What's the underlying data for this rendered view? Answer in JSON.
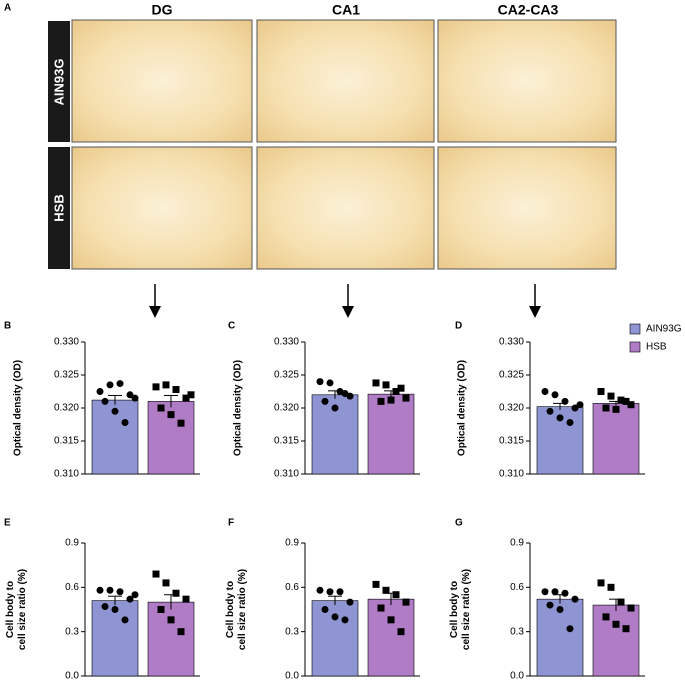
{
  "panel_a": {
    "label": "A",
    "columns": [
      "DG",
      "CA1",
      "CA2-CA3"
    ],
    "rows": [
      "AIN93G",
      "HSB"
    ]
  },
  "chart_data": [
    {
      "type": "bar",
      "label": "B",
      "ylabel": "Optical density (OD)",
      "ylim": [
        0.31,
        0.33
      ],
      "yticks": [
        {
          "value": 0.31,
          "label": "0.310"
        },
        {
          "value": 0.315,
          "label": "0.315"
        },
        {
          "value": 0.32,
          "label": "0.320"
        },
        {
          "value": 0.325,
          "label": "0.325"
        },
        {
          "value": 0.33,
          "label": "0.330"
        }
      ],
      "series": [
        {
          "name": "AIN93G",
          "color": "#8f95d3",
          "marker": "circle",
          "values": [
            0.3212
          ],
          "errors": [
            0.0007
          ],
          "points": [
            0.3225,
            0.3235,
            0.3237,
            0.322,
            0.321,
            0.3195,
            0.3178,
            0.3215
          ]
        },
        {
          "name": "HSB",
          "color": "#b07cc6",
          "marker": "square",
          "values": [
            0.321
          ],
          "errors": [
            0.0009
          ],
          "points": [
            0.3232,
            0.3235,
            0.3228,
            0.3215,
            0.32,
            0.319,
            0.3177,
            0.322
          ]
        }
      ]
    },
    {
      "type": "bar",
      "label": "C",
      "ylabel": "Optical density (OD)",
      "ylim": [
        0.31,
        0.33
      ],
      "yticks": [
        {
          "value": 0.31,
          "label": "0.310"
        },
        {
          "value": 0.315,
          "label": "0.315"
        },
        {
          "value": 0.32,
          "label": "0.320"
        },
        {
          "value": 0.325,
          "label": "0.325"
        },
        {
          "value": 0.33,
          "label": "0.330"
        }
      ],
      "series": [
        {
          "name": "AIN93G",
          "color": "#8f95d3",
          "marker": "circle",
          "values": [
            0.322
          ],
          "errors": [
            0.0006
          ],
          "points": [
            0.324,
            0.3238,
            0.3225,
            0.3218,
            0.321,
            0.32,
            0.3222
          ]
        },
        {
          "name": "HSB",
          "color": "#b07cc6",
          "marker": "square",
          "values": [
            0.3221
          ],
          "errors": [
            0.0005
          ],
          "points": [
            0.3238,
            0.3235,
            0.3225,
            0.3215,
            0.321,
            0.3212,
            0.323
          ]
        }
      ]
    },
    {
      "type": "bar",
      "label": "D",
      "ylabel": "Optical density (OD)",
      "ylim": [
        0.31,
        0.33
      ],
      "yticks": [
        {
          "value": 0.31,
          "label": "0.310"
        },
        {
          "value": 0.315,
          "label": "0.315"
        },
        {
          "value": 0.32,
          "label": "0.320"
        },
        {
          "value": 0.325,
          "label": "0.325"
        },
        {
          "value": 0.33,
          "label": "0.330"
        }
      ],
      "legend": "right",
      "series": [
        {
          "name": "AIN93G",
          "color": "#8f95d3",
          "marker": "circle",
          "values": [
            0.3202
          ],
          "errors": [
            0.0005
          ],
          "points": [
            0.3225,
            0.322,
            0.321,
            0.32,
            0.3195,
            0.3185,
            0.3178,
            0.3205
          ]
        },
        {
          "name": "HSB",
          "color": "#b07cc6",
          "marker": "square",
          "values": [
            0.3207
          ],
          "errors": [
            0.0003
          ],
          "points": [
            0.3225,
            0.3218,
            0.3212,
            0.3205,
            0.32,
            0.3198,
            0.321
          ]
        }
      ]
    },
    {
      "type": "bar",
      "label": "E",
      "ylabel": "Cell body to cell size ratio (%)",
      "ylim": [
        0,
        0.9
      ],
      "yticks": [
        {
          "value": 0,
          "label": "0.0"
        },
        0.3,
        0.6,
        0.9
      ],
      "series": [
        {
          "name": "AIN93G",
          "color": "#8f95d3",
          "marker": "circle",
          "values": [
            0.51
          ],
          "errors": [
            0.03
          ],
          "points": [
            0.58,
            0.58,
            0.57,
            0.52,
            0.47,
            0.45,
            0.38,
            0.55
          ]
        },
        {
          "name": "HSB",
          "color": "#b07cc6",
          "marker": "square",
          "values": [
            0.5
          ],
          "errors": [
            0.05
          ],
          "points": [
            0.69,
            0.63,
            0.56,
            0.52,
            0.45,
            0.38,
            0.3
          ]
        }
      ]
    },
    {
      "type": "bar",
      "label": "F",
      "ylabel": "Cell body to cell size ratio (%)",
      "ylim": [
        0,
        0.9
      ],
      "yticks": [
        {
          "value": 0,
          "label": "0.0"
        },
        0.3,
        0.6,
        0.9
      ],
      "series": [
        {
          "name": "AIN93G",
          "color": "#8f95d3",
          "marker": "circle",
          "values": [
            0.51
          ],
          "errors": [
            0.03
          ],
          "points": [
            0.58,
            0.57,
            0.57,
            0.5,
            0.45,
            0.4,
            0.38
          ]
        },
        {
          "name": "HSB",
          "color": "#b07cc6",
          "marker": "square",
          "values": [
            0.52
          ],
          "errors": [
            0.04
          ],
          "points": [
            0.62,
            0.58,
            0.55,
            0.5,
            0.46,
            0.38,
            0.3
          ]
        }
      ]
    },
    {
      "type": "bar",
      "label": "G",
      "ylabel": "Cell body to cell size ratio (%)",
      "ylim": [
        0,
        0.9
      ],
      "yticks": [
        {
          "value": 0,
          "label": "0.0"
        },
        0.3,
        0.6,
        0.9
      ],
      "series": [
        {
          "name": "AIN93G",
          "color": "#8f95d3",
          "marker": "circle",
          "values": [
            0.52
          ],
          "errors": [
            0.03
          ],
          "points": [
            0.57,
            0.57,
            0.56,
            0.52,
            0.48,
            0.45,
            0.32
          ]
        },
        {
          "name": "HSB",
          "color": "#b07cc6",
          "marker": "square",
          "values": [
            0.48
          ],
          "errors": [
            0.04
          ],
          "points": [
            0.63,
            0.6,
            0.5,
            0.46,
            0.4,
            0.35,
            0.32
          ]
        }
      ]
    }
  ]
}
